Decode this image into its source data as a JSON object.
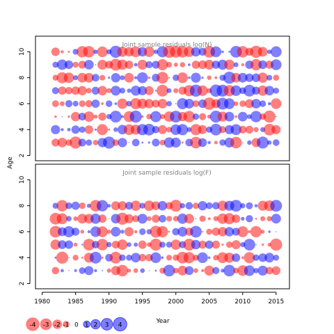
{
  "colors": {
    "positive": "#0000ff",
    "negative": "#ff0000",
    "panel_title": "#7f7f7f",
    "frame": "#000000"
  },
  "chart_data": [
    {
      "type": "scatter",
      "subtype": "bubble",
      "title": "Joint sample residuals log(N)",
      "ylabel": "Age",
      "xlabel": "Year",
      "xlim": [
        1979,
        2017
      ],
      "ylim": [
        1.6,
        11.2
      ],
      "yticks": [
        2,
        4,
        6,
        8,
        10
      ],
      "ages": [
        3,
        4,
        5,
        6,
        7,
        8,
        9,
        10
      ],
      "years": [
        1982,
        2015
      ],
      "bubble_size": "absolute residual",
      "bubble_color": "sign of residual (blue positive, red negative)"
    },
    {
      "type": "scatter",
      "subtype": "bubble",
      "title": "Joint sample residuals log(F)",
      "ylabel": "Age",
      "xlabel": "Year",
      "xlim": [
        1979,
        2017
      ],
      "ylim": [
        1.6,
        11.2
      ],
      "xticks": [
        1980,
        1985,
        1990,
        1995,
        2000,
        2005,
        2010,
        2015
      ],
      "yticks": [
        2,
        4,
        6,
        8,
        10
      ],
      "ages": [
        3,
        4,
        5,
        6,
        7,
        8
      ],
      "years": [
        1982,
        2015
      ]
    }
  ],
  "axis": {
    "ylabel": "Age",
    "xlabel": "Year"
  },
  "legend": {
    "items": [
      {
        "label": "-4",
        "value": -4
      },
      {
        "label": "-3",
        "value": -3
      },
      {
        "label": "-2",
        "value": -2
      },
      {
        "label": "-1",
        "value": -1
      },
      {
        "label": "0",
        "value": 0
      },
      {
        "label": "1",
        "value": 1
      },
      {
        "label": "2",
        "value": 2
      },
      {
        "label": "3",
        "value": 3
      },
      {
        "label": "4",
        "value": 4
      }
    ]
  }
}
